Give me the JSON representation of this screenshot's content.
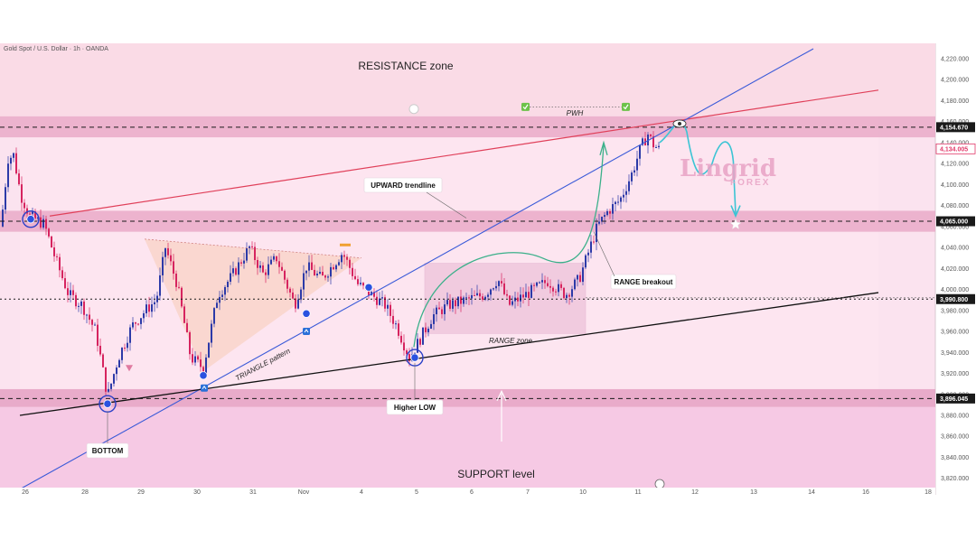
{
  "header": {
    "instrument": "Gold Spot / U.S. Dollar · 1h · OANDA"
  },
  "chart_data": {
    "type": "line",
    "instrument": "Gold Spot / U.S. Dollar · 1h · OANDA",
    "y_ticks": [
      "4,220.000",
      "4,200.000",
      "4,180.000",
      "4,160.000",
      "4,140.000",
      "4,120.000",
      "4,100.000",
      "4,080.000",
      "4,060.000",
      "4,040.000",
      "4,020.000",
      "4,000.000",
      "3,980.000",
      "3,960.000",
      "3,940.000",
      "3,920.000",
      "3,900.000",
      "3,880.000",
      "3,860.000",
      "3,840.000",
      "3,820.000"
    ],
    "x_ticks": [
      "26",
      "28",
      "29",
      "30",
      "31",
      "Nov",
      "4",
      "5",
      "6",
      "7",
      "10",
      "11",
      "12",
      "13",
      "14",
      "16",
      "18"
    ],
    "ylim": [
      3812,
      4232
    ],
    "price_series_approx": [
      {
        "x": "Oct 26",
        "y": 4060
      },
      {
        "x": "Oct 27",
        "y": 4130
      },
      {
        "x": "Oct 27",
        "y": 4050
      },
      {
        "x": "Oct 28",
        "y": 3895
      },
      {
        "x": "Oct 29",
        "y": 4005
      },
      {
        "x": "Oct 30",
        "y": 3925
      },
      {
        "x": "Oct 31",
        "y": 4040
      },
      {
        "x": "Nov 3",
        "y": 4035
      },
      {
        "x": "Nov 4",
        "y": 3995
      },
      {
        "x": "Nov 5",
        "y": 3935
      },
      {
        "x": "Nov 6",
        "y": 3990
      },
      {
        "x": "Nov 7",
        "y": 4015
      },
      {
        "x": "Nov 10",
        "y": 4060
      },
      {
        "x": "Nov 11",
        "y": 4145
      },
      {
        "x": "Nov 11",
        "y": 4134
      }
    ],
    "price_levels": [
      {
        "label": "4,154.670",
        "value": 4154.67,
        "color": "#1a1a1a"
      },
      {
        "label": "4,134.005",
        "value": 4134.005,
        "color": "#e23a6a"
      },
      {
        "label": "4,065.000",
        "value": 4065.0,
        "color": "#1a1a1a"
      },
      {
        "label": "3,990.800",
        "value": 3990.8,
        "color": "#1a1a1a"
      },
      {
        "label": "3,896.045",
        "value": 3896.045,
        "color": "#1a1a1a"
      }
    ],
    "zones": {
      "resistance": [
        4145,
        4165
      ],
      "middle": [
        4055,
        4075
      ],
      "support": [
        3888,
        3905
      ]
    },
    "annotations": {
      "resistance_zone": "RESISTANCE zone",
      "support_level": "SUPPORT level",
      "pwh": "PWH",
      "upward_trendline": "UPWARD trendline",
      "range_breakout": "RANGE breakout",
      "range_zone": "RANGE zone",
      "triangle_pattern": "TRIANGLE pattern",
      "higher_low": "Higher LOW",
      "bottom": "BOTTOM"
    },
    "watermark": {
      "main": "Lingrid",
      "sub": "FOREX"
    },
    "colors": {
      "bull": "#2c3aa8",
      "bear": "#d6245f",
      "resistance_line": "#e0405a",
      "trendline": "#3a5ad8",
      "support_line": "#111111",
      "projection": "#3cc4d4",
      "breakout_arrow": "#3bb08a",
      "price_tag": "#e23a6a"
    },
    "grid": false
  }
}
